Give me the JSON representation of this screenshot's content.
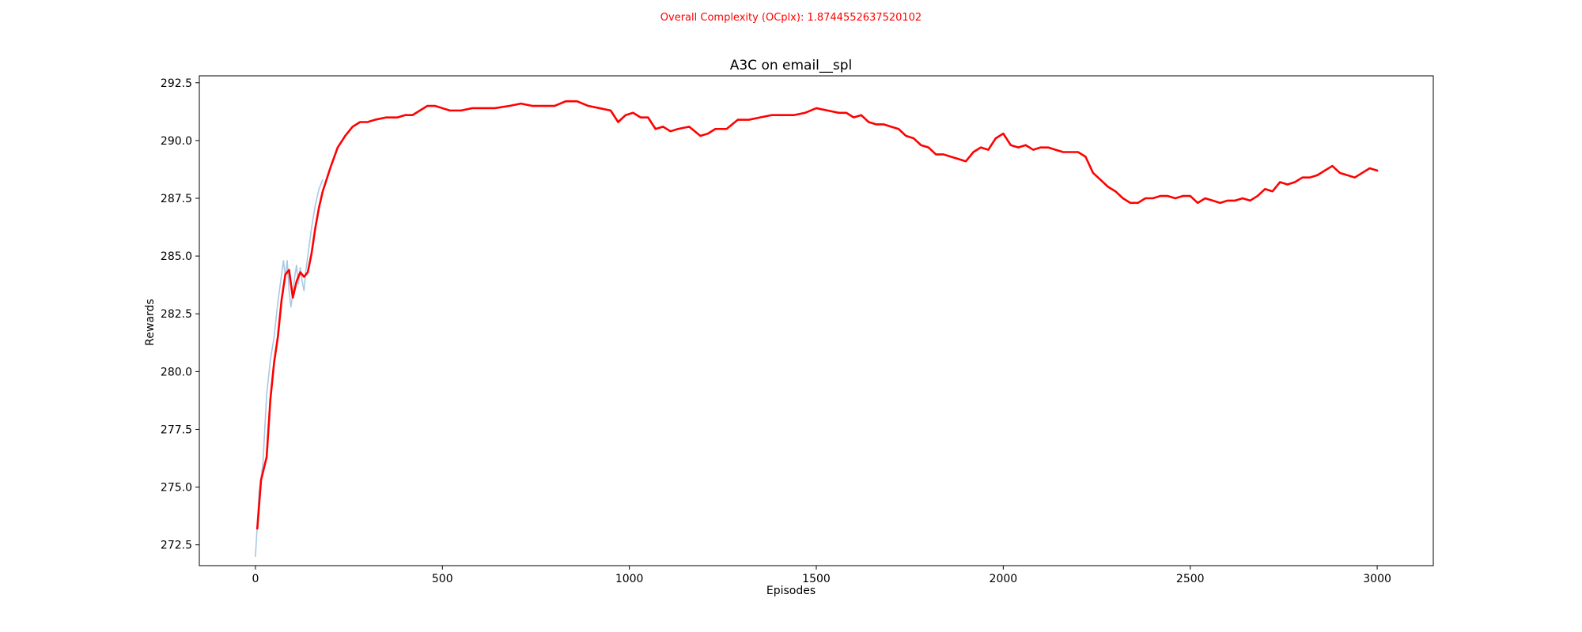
{
  "suptitle": "Overall Complexity (OCplx): 1.8744552637520102",
  "chart_data": {
    "type": "line",
    "title": "A3C on email__spl",
    "xlabel": "Episodes",
    "ylabel": "Rewards",
    "xlim": [
      -150,
      3150
    ],
    "ylim": [
      271.6,
      292.8
    ],
    "xticks": [
      0,
      500,
      1000,
      1500,
      2000,
      2500,
      3000
    ],
    "yticks": [
      272.5,
      275.0,
      277.5,
      280.0,
      282.5,
      285.0,
      287.5,
      290.0,
      292.5
    ],
    "xtick_labels": [
      "0",
      "500",
      "1000",
      "1500",
      "2000",
      "2500",
      "3000"
    ],
    "ytick_labels": [
      "272.5",
      "275.0",
      "277.5",
      "280.0",
      "282.5",
      "285.0",
      "287.5",
      "290.0",
      "292.5"
    ],
    "grid": false,
    "colors": {
      "raw": "#a9c8e4",
      "smoothed": "#ff0000",
      "suptitle": "#ff0000"
    },
    "series": [
      {
        "role": "raw",
        "x": [
          0,
          10,
          20,
          30,
          40,
          50,
          60,
          70,
          75,
          80,
          85,
          90,
          95,
          100,
          105,
          110,
          115,
          120,
          125,
          130,
          135,
          140,
          150,
          160,
          170,
          180
        ],
        "y": [
          272.0,
          274.8,
          276.0,
          279.0,
          280.5,
          281.5,
          283.0,
          284.2,
          284.8,
          284.1,
          284.8,
          283.5,
          282.8,
          283.4,
          284.1,
          284.6,
          283.8,
          284.5,
          283.9,
          283.5,
          284.4,
          285.0,
          286.2,
          287.2,
          287.9,
          288.3
        ]
      },
      {
        "role": "smoothed",
        "x": [
          5,
          15,
          30,
          40,
          50,
          60,
          70,
          80,
          90,
          100,
          110,
          120,
          130,
          140,
          150,
          160,
          170,
          180,
          200,
          220,
          240,
          260,
          280,
          300,
          320,
          350,
          380,
          400,
          420,
          440,
          460,
          480,
          500,
          520,
          550,
          580,
          610,
          640,
          680,
          710,
          740,
          770,
          800,
          830,
          860,
          890,
          920,
          950,
          970,
          990,
          1010,
          1030,
          1050,
          1070,
          1090,
          1110,
          1130,
          1160,
          1190,
          1210,
          1230,
          1260,
          1290,
          1320,
          1350,
          1380,
          1410,
          1440,
          1470,
          1500,
          1530,
          1560,
          1580,
          1600,
          1620,
          1640,
          1660,
          1680,
          1700,
          1720,
          1740,
          1760,
          1780,
          1800,
          1820,
          1840,
          1860,
          1880,
          1900,
          1920,
          1940,
          1960,
          1980,
          2000,
          2020,
          2040,
          2060,
          2080,
          2100,
          2120,
          2140,
          2160,
          2180,
          2200,
          2220,
          2240,
          2260,
          2280,
          2300,
          2320,
          2340,
          2360,
          2380,
          2400,
          2420,
          2440,
          2460,
          2480,
          2500,
          2520,
          2540,
          2560,
          2580,
          2600,
          2620,
          2640,
          2660,
          2680,
          2700,
          2720,
          2740,
          2760,
          2780,
          2800,
          2820,
          2840,
          2860,
          2880,
          2900,
          2920,
          2940,
          2960,
          2980,
          3000
        ],
        "y": [
          273.2,
          275.3,
          276.3,
          278.8,
          280.4,
          281.5,
          283.1,
          284.2,
          284.4,
          283.2,
          283.9,
          284.3,
          284.1,
          284.3,
          285.1,
          286.2,
          287.1,
          287.8,
          288.8,
          289.7,
          290.2,
          290.6,
          290.8,
          290.8,
          290.9,
          291.0,
          291.0,
          291.1,
          291.1,
          291.3,
          291.5,
          291.5,
          291.4,
          291.3,
          291.3,
          291.4,
          291.4,
          291.4,
          291.5,
          291.6,
          291.5,
          291.5,
          291.5,
          291.7,
          291.7,
          291.5,
          291.4,
          291.3,
          290.8,
          291.1,
          291.2,
          291.0,
          291.0,
          290.5,
          290.6,
          290.4,
          290.5,
          290.6,
          290.2,
          290.3,
          290.5,
          290.5,
          290.9,
          290.9,
          291.0,
          291.1,
          291.1,
          291.1,
          291.2,
          291.4,
          291.3,
          291.2,
          291.2,
          291.0,
          291.1,
          290.8,
          290.7,
          290.7,
          290.6,
          290.5,
          290.2,
          290.1,
          289.8,
          289.7,
          289.4,
          289.4,
          289.3,
          289.2,
          289.1,
          289.5,
          289.7,
          289.6,
          290.1,
          290.3,
          289.8,
          289.7,
          289.8,
          289.6,
          289.7,
          289.7,
          289.6,
          289.5,
          289.5,
          289.5,
          289.3,
          288.6,
          288.3,
          288.0,
          287.8,
          287.5,
          287.3,
          287.3,
          287.5,
          287.5,
          287.6,
          287.6,
          287.5,
          287.6,
          287.6,
          287.3,
          287.5,
          287.4,
          287.3,
          287.4,
          287.4,
          287.5,
          287.4,
          287.6,
          287.9,
          287.8,
          288.2,
          288.1,
          288.2,
          288.4,
          288.4,
          288.5,
          288.7,
          288.9,
          288.6,
          288.5,
          288.4,
          288.6,
          288.8,
          288.7
        ]
      }
    ]
  }
}
